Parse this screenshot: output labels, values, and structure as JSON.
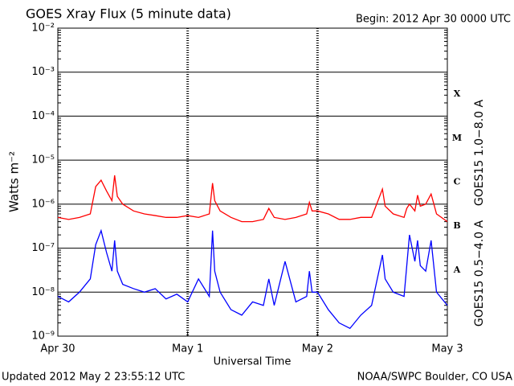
{
  "chart_data": {
    "type": "line",
    "title": "GOES Xray Flux (5 minute data)",
    "begin": "Begin:  2012 Apr 30 0000 UTC",
    "ylabel": "Watts m⁻²",
    "xlabel": "Universal Time",
    "updated": "Updated 2012 May  2 23:55:12 UTC",
    "source": "NOAA/SWPC Boulder, CO USA",
    "log_y": true,
    "grid": true,
    "ylim": [
      1e-09,
      0.01
    ],
    "yticks": [
      {
        "value": 1e-09,
        "label": "10⁻⁹"
      },
      {
        "value": 1e-08,
        "label": "10⁻⁸"
      },
      {
        "value": 1e-07,
        "label": "10⁻⁷"
      },
      {
        "value": 1e-06,
        "label": "10⁻⁶"
      },
      {
        "value": 1e-05,
        "label": "10⁻⁵"
      },
      {
        "value": 0.0001,
        "label": "10⁻⁴"
      },
      {
        "value": 0.001,
        "label": "10⁻³"
      },
      {
        "value": 0.01,
        "label": "10⁻²"
      }
    ],
    "xlim": [
      0,
      72
    ],
    "xticks": [
      {
        "value": 0,
        "label": "Apr 30"
      },
      {
        "value": 24,
        "label": "May 1"
      },
      {
        "value": 48,
        "label": "May 2"
      },
      {
        "value": 72,
        "label": "May 3"
      }
    ],
    "class_labels": [
      "A",
      "B",
      "C",
      "M",
      "X"
    ],
    "x": [
      0,
      2,
      4,
      6,
      7,
      8,
      9,
      10,
      10.5,
      11,
      12,
      14,
      16,
      18,
      20,
      22,
      24,
      26,
      28,
      28.6,
      29,
      30,
      32,
      34,
      36,
      38,
      39,
      40,
      42,
      44,
      46,
      46.5,
      47,
      48,
      50,
      52,
      54,
      56,
      58,
      60,
      60.5,
      62,
      64,
      64.5,
      65,
      66,
      66.5,
      67,
      68,
      69,
      70,
      72
    ],
    "series": [
      {
        "name": "GOES15 1.0−8.0 A",
        "color": "#ff0000",
        "values": [
          5e-07,
          4.5e-07,
          5e-07,
          6e-07,
          2.5e-06,
          3.5e-06,
          2e-06,
          1.2e-06,
          4.5e-06,
          1.5e-06,
          1e-06,
          7e-07,
          6e-07,
          5.5e-07,
          5e-07,
          5e-07,
          5.5e-07,
          5e-07,
          6e-07,
          3e-06,
          1.2e-06,
          7e-07,
          5e-07,
          4e-07,
          4e-07,
          4.5e-07,
          8e-07,
          5e-07,
          4.5e-07,
          5e-07,
          6e-07,
          1.1e-06,
          7e-07,
          7e-07,
          6e-07,
          4.5e-07,
          4.5e-07,
          5e-07,
          5e-07,
          2.2e-06,
          9e-07,
          6e-07,
          5e-07,
          8e-07,
          1e-06,
          7e-07,
          1.6e-06,
          9e-07,
          1e-06,
          1.7e-06,
          6e-07,
          4e-07
        ]
      },
      {
        "name": "GOES15 0.5−4.0 A",
        "color": "#0000ff",
        "values": [
          8e-09,
          6e-09,
          1e-08,
          2e-08,
          1.2e-07,
          2.5e-07,
          8e-08,
          3e-08,
          1.5e-07,
          3e-08,
          1.5e-08,
          1.2e-08,
          1e-08,
          1.2e-08,
          7e-09,
          9e-09,
          6e-09,
          2e-08,
          8e-09,
          2.5e-07,
          3e-08,
          1e-08,
          4e-09,
          3e-09,
          6e-09,
          5e-09,
          2e-08,
          5e-09,
          5e-08,
          6e-09,
          8e-09,
          3e-08,
          1e-08,
          1e-08,
          4e-09,
          2e-09,
          1.5e-09,
          3e-09,
          5e-09,
          7e-08,
          2e-08,
          1e-08,
          8e-09,
          4e-08,
          2e-07,
          5e-08,
          1.5e-07,
          4e-08,
          3e-08,
          1.5e-07,
          1e-08,
          5e-09
        ]
      }
    ]
  }
}
